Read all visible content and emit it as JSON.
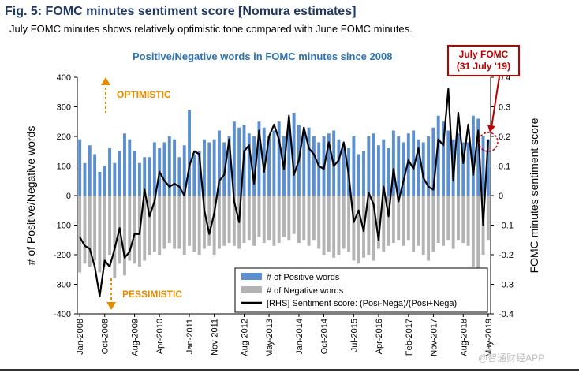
{
  "header": {
    "title": "Fig. 5: FOMC minutes sentiment score [Nomura estimates]",
    "subtitle": "July FOMC minutes shows relatively optimistic tone compared with June FOMC minutes."
  },
  "callout": {
    "line1": "July FOMC",
    "line2": "(31 July '19)"
  },
  "annotations": {
    "optimistic": "OPTIMISTIC",
    "pessimistic": "PESSIMISTIC"
  },
  "watermark": "@智通财经APP",
  "colors": {
    "positive": "#5b8fd0",
    "negative": "#b3b3b3",
    "line": "#000000",
    "accent": "#e68a00",
    "callout": "#c00000",
    "title": "#1f3864"
  },
  "chart_data": {
    "type": "bar+line",
    "title": "Positive/Negative words in FOMC minutes since 2008",
    "ylabel_left": "# of Positive/Negative words",
    "ylabel_right": "FOMC minutes sentiment score",
    "ylim_left": [
      -400,
      400
    ],
    "yticks_left": [
      400,
      300,
      200,
      100,
      0,
      -100,
      -200,
      -300,
      -400
    ],
    "ylim_right": [
      -0.4,
      0.4
    ],
    "yticks_right": [
      "0.4",
      "0.3",
      "0.2",
      "0.1",
      "0",
      "-0.1",
      "-0.2",
      "-0.3",
      "-0.4"
    ],
    "x_tick_labels": [
      "Jan-2008",
      "Oct-2008",
      "Aug-2009",
      "Apr-2010",
      "Jan-2011",
      "Nov-2011",
      "Aug-2012",
      "May-2013",
      "Jan-2014",
      "Oct-2014",
      "Jul-2015",
      "Apr-2016",
      "Feb-2017",
      "Nov-2017",
      "Aug-2018",
      "May-2019"
    ],
    "legend": [
      {
        "label": "# of Positive words",
        "kind": "bar-positive"
      },
      {
        "label": "# of Negative words",
        "kind": "bar-negative"
      },
      {
        "label": "[RHS] Sentiment score: (Posi-Nega)/(Posi+Nega)",
        "kind": "line"
      }
    ],
    "legend_position": "bottom-right",
    "series": [
      {
        "name": "# of Positive words",
        "values": [
          190,
          110,
          170,
          140,
          80,
          100,
          160,
          110,
          150,
          210,
          190,
          150,
          110,
          130,
          130,
          180,
          160,
          180,
          200,
          190,
          130,
          170,
          290,
          140,
          150,
          190,
          180,
          190,
          220,
          180,
          200,
          250,
          230,
          240,
          210,
          200,
          250,
          230,
          200,
          220,
          250,
          200,
          240,
          280,
          240,
          210,
          230,
          200,
          180,
          200,
          210,
          220,
          190,
          170,
          160,
          200,
          140,
          150,
          200,
          210,
          170,
          190,
          160,
          220,
          200,
          180,
          210,
          220,
          190,
          180,
          200,
          230,
          270,
          250,
          220,
          190,
          210,
          180,
          180,
          270,
          260,
          200,
          190
        ]
      },
      {
        "name": "# of Negative words",
        "values": [
          -260,
          -230,
          -240,
          -220,
          -260,
          -240,
          -200,
          -280,
          -230,
          -270,
          -220,
          -230,
          -240,
          -220,
          -200,
          -190,
          -200,
          -180,
          -160,
          -180,
          -180,
          -200,
          -170,
          -190,
          -200,
          -180,
          -170,
          -200,
          -180,
          -170,
          -160,
          -170,
          -180,
          -160,
          -150,
          -170,
          -140,
          -160,
          -150,
          -170,
          -160,
          -140,
          -150,
          -130,
          -160,
          -150,
          -170,
          -150,
          -180,
          -200,
          -190,
          -210,
          -200,
          -180,
          -190,
          -220,
          -230,
          -210,
          -200,
          -220,
          -180,
          -190,
          -170,
          -160,
          -150,
          -170,
          -150,
          -190,
          -170,
          -200,
          -220,
          -190,
          -160,
          -170,
          -150,
          -180,
          -150,
          -160,
          -170,
          -240,
          -250,
          -200,
          -150
        ]
      },
      {
        "name": "[RHS] Sentiment score: (Posi-Nega)/(Posi+Nega)",
        "values": [
          -0.14,
          -0.17,
          -0.18,
          -0.24,
          -0.34,
          -0.22,
          -0.24,
          -0.18,
          -0.11,
          -0.21,
          -0.19,
          -0.13,
          -0.13,
          0.02,
          -0.07,
          -0.02,
          0.08,
          0.05,
          0.03,
          0.04,
          0.03,
          0.0,
          0.1,
          0.15,
          0.14,
          -0.05,
          -0.13,
          -0.06,
          0.05,
          0.07,
          0.19,
          -0.02,
          -0.09,
          0.15,
          0.17,
          0.04,
          0.22,
          0.08,
          0.2,
          0.24,
          0.19,
          0.09,
          0.27,
          0.07,
          0.12,
          0.23,
          0.16,
          0.14,
          0.1,
          0.09,
          0.18,
          0.1,
          0.12,
          0.18,
          0.07,
          -0.09,
          -0.05,
          -0.12,
          0.01,
          -0.03,
          -0.15,
          0.03,
          -0.07,
          0.09,
          -0.02,
          0.05,
          0.12,
          0.09,
          0.16,
          0.06,
          0.03,
          0.02,
          0.19,
          0.17,
          0.36,
          0.05,
          0.28,
          0.11,
          0.24,
          0.07,
          0.22,
          -0.1,
          0.19
        ]
      }
    ]
  }
}
